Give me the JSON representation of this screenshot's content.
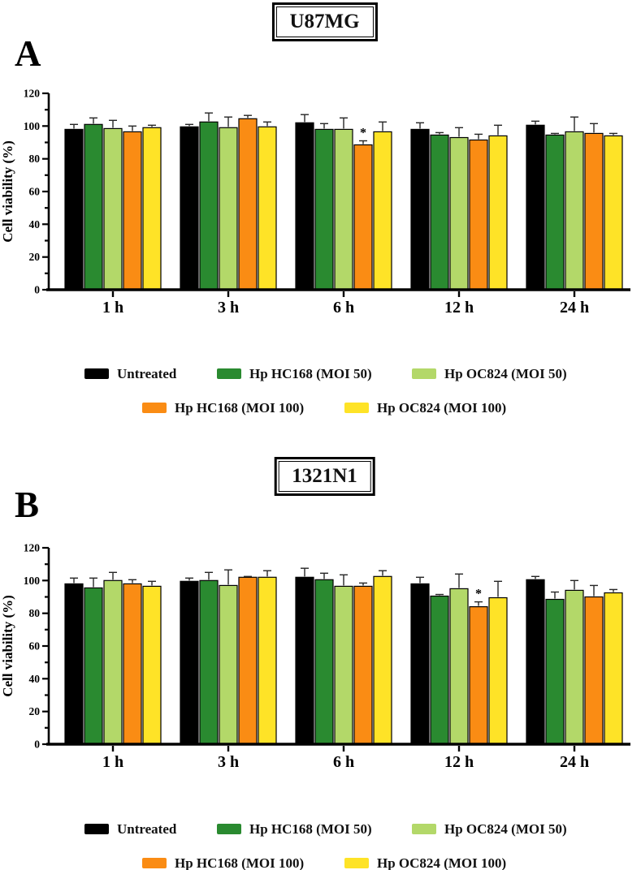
{
  "figure_caption": "",
  "chart_data": [
    {
      "type": "bar",
      "panel_label": "A",
      "title": "U87MG",
      "xlabel": "",
      "ylabel": "Cell viability (%)",
      "ylim": [
        0,
        120
      ],
      "yticks": [
        0,
        20,
        40,
        60,
        80,
        100,
        120
      ],
      "yminor_step": 10,
      "grid": false,
      "legend_position": "bottom",
      "categories": [
        "1 h",
        "3 h",
        "6 h",
        "12 h",
        "24 h"
      ],
      "series": [
        {
          "name": "Untreated",
          "color": "#000000",
          "values": [
            98,
            99.5,
            102,
            98,
            100.5
          ],
          "errors": [
            3,
            1.5,
            5,
            4,
            2.5
          ]
        },
        {
          "name": "Hp HC168 (MOI 50)",
          "color": "#2a8a30",
          "values": [
            101,
            102.5,
            98,
            94.5,
            94.5
          ],
          "errors": [
            4,
            5.5,
            3.5,
            1.5,
            1
          ]
        },
        {
          "name": "Hp OC824 (MOI 50)",
          "color": "#b3d869",
          "values": [
            98.5,
            99,
            98,
            93,
            96.5
          ],
          "errors": [
            5,
            6.5,
            7,
            6,
            9
          ]
        },
        {
          "name": "Hp HC168 (MOI 100)",
          "color": "#fa8c14",
          "values": [
            96.5,
            104.5,
            88.5,
            91.5,
            95.5
          ],
          "errors": [
            3.5,
            2,
            2.5,
            3.5,
            6
          ]
        },
        {
          "name": "Hp OC824 (MOI 100)",
          "color": "#fee327",
          "values": [
            99,
            99.5,
            96.5,
            94,
            94
          ],
          "errors": [
            1.5,
            3,
            6,
            6.5,
            1.5
          ]
        }
      ],
      "significance_markers": [
        {
          "category": "6 h",
          "series": "Hp HC168 (MOI 100)",
          "marker": "*"
        }
      ],
      "legend_rows": [
        [
          "Untreated",
          "Hp HC168 (MOI 50)",
          "Hp OC824 (MOI 50)"
        ],
        [
          "Hp HC168 (MOI 100)",
          "Hp OC824 (MOI 100)"
        ]
      ]
    },
    {
      "type": "bar",
      "panel_label": "B",
      "title": "1321N1",
      "xlabel": "",
      "ylabel": "Cell viability (%)",
      "ylim": [
        0,
        120
      ],
      "yticks": [
        0,
        20,
        40,
        60,
        80,
        100,
        120
      ],
      "yminor_step": 10,
      "grid": false,
      "legend_position": "bottom",
      "categories": [
        "1 h",
        "3 h",
        "6 h",
        "12 h",
        "24 h"
      ],
      "series": [
        {
          "name": "Untreated",
          "color": "#000000",
          "values": [
            98,
            99.5,
            102,
            98,
            100.5
          ],
          "errors": [
            3.5,
            2,
            5.5,
            4,
            2
          ]
        },
        {
          "name": "Hp HC168 (MOI 50)",
          "color": "#2a8a30",
          "values": [
            95.5,
            100,
            100.5,
            90.5,
            88.5
          ],
          "errors": [
            6,
            5,
            4,
            1,
            4.5
          ]
        },
        {
          "name": "Hp OC824 (MOI 50)",
          "color": "#b3d869",
          "values": [
            100,
            97,
            96.5,
            95,
            94
          ],
          "errors": [
            5,
            9.5,
            7,
            9,
            6
          ]
        },
        {
          "name": "Hp HC168 (MOI 100)",
          "color": "#fa8c14",
          "values": [
            98,
            102,
            96.5,
            84,
            90
          ],
          "errors": [
            2.5,
            0.5,
            2,
            3,
            7
          ]
        },
        {
          "name": "Hp OC824 (MOI 100)",
          "color": "#fee327",
          "values": [
            96.5,
            102,
            102.5,
            89.5,
            92.5
          ],
          "errors": [
            3,
            4,
            3.5,
            10,
            2
          ]
        }
      ],
      "significance_markers": [
        {
          "category": "12 h",
          "series": "Hp HC168 (MOI 100)",
          "marker": "*"
        }
      ],
      "legend_rows": [
        [
          "Untreated",
          "Hp HC168 (MOI 50)",
          "Hp OC824 (MOI 50)"
        ],
        [
          "Hp HC168 (MOI 100)",
          "Hp OC824 (MOI 100)"
        ]
      ]
    }
  ]
}
